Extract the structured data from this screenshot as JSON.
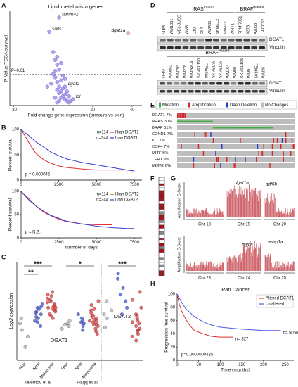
{
  "chart_data": [
    {
      "panel": "A",
      "type": "scatter",
      "title": "Lipid metabolism genes",
      "xlabel": "Fold change gene expression (tumours vs skin)",
      "ylabel": "P-Value TCGA survival",
      "xlim": [
        -22,
        45
      ],
      "xticks": [
        -20,
        0,
        20,
        40
      ],
      "ylim": [
        0,
        6
      ],
      "threshold": {
        "label": "P=0.01",
        "value": 2
      },
      "series": [
        {
          "color": "#a094ea",
          "x": [
            1,
            2,
            3,
            4,
            5,
            6,
            7,
            8,
            2,
            3,
            5,
            1,
            0,
            4,
            6,
            9,
            3,
            2,
            1,
            -1,
            0,
            5,
            7,
            4,
            3,
            8,
            6,
            2,
            1,
            -3,
            4,
            2
          ],
          "y": [
            1.8,
            1.5,
            1.2,
            0.9,
            0.6,
            0.4,
            0.3,
            0.2,
            2.6,
            2.3,
            1.9,
            2.9,
            3.4,
            0.5,
            0.7,
            0.3,
            0.8,
            1.0,
            0.5,
            1.4,
            2.0,
            1.1,
            0.9,
            1.6,
            0.3,
            0.6,
            1.7,
            0.2,
            2.2,
            1.2,
            2.7,
            3.1
          ]
        },
        {
          "color": "#a094ea",
          "x": [
            3,
            -2,
            6,
            10
          ],
          "y": [
            5.6,
            4.7,
            1.2,
            0.4
          ],
          "labels": [
            "tamm41",
            "sults1",
            "dgat2",
            "lpl"
          ]
        },
        {
          "color": "#f7a8a8",
          "x": [
            38
          ],
          "y": [
            4.6
          ],
          "labels": [
            "dgat1a"
          ]
        }
      ]
    },
    {
      "panel": "B",
      "type": "line",
      "ylabel": "Percent survival",
      "xlim": [
        0,
        8000
      ],
      "xticks": [
        0,
        2500,
        5000,
        7500
      ],
      "ylim": [
        0,
        100
      ],
      "yticks": [
        0,
        50,
        100
      ],
      "p_value": "p = 0.000046",
      "n_label_at": "legend",
      "series": [
        {
          "name": "High DGAT1",
          "n_label": "n=114",
          "color": "#e03030",
          "x": [
            0,
            300,
            700,
            1000,
            1500,
            2000,
            2500,
            3000,
            4000,
            5000,
            6000,
            7000
          ],
          "y": [
            100,
            85,
            65,
            52,
            40,
            33,
            28,
            25,
            22,
            20,
            20,
            20
          ]
        },
        {
          "name": "Low DGAT1",
          "n_label": "n=344",
          "color": "#3040d0",
          "x": [
            0,
            500,
            1000,
            1500,
            2000,
            2500,
            3000,
            4000,
            5000,
            6000,
            7000,
            7500
          ],
          "y": [
            100,
            88,
            75,
            65,
            55,
            48,
            42,
            35,
            30,
            25,
            20,
            18
          ]
        }
      ]
    },
    {
      "type": "line",
      "ylabel": "Percent survival",
      "xlabel": "Number of days",
      "xlim": [
        0,
        8000
      ],
      "xticks": [
        0,
        2500,
        5000,
        7500
      ],
      "ylim": [
        0,
        100
      ],
      "yticks": [
        0,
        50,
        100
      ],
      "p_value": "p = N.S.",
      "n_label_at": "legend",
      "series": [
        {
          "name": "High DGAT2",
          "n_label": "n=114",
          "color": "#e03030",
          "x": [
            0,
            500,
            1000,
            1500,
            2000,
            2500,
            3000,
            4000,
            5000,
            6000
          ],
          "y": [
            100,
            85,
            68,
            55,
            47,
            40,
            35,
            30,
            28,
            28
          ]
        },
        {
          "name": "Low DGAT2",
          "n_label": "n=344",
          "color": "#3040d0",
          "x": [
            0,
            500,
            1000,
            1500,
            2000,
            2500,
            3000,
            4000,
            5000,
            6000,
            7000,
            7500
          ],
          "y": [
            100,
            82,
            68,
            57,
            48,
            42,
            36,
            30,
            25,
            22,
            20,
            20
          ]
        }
      ]
    },
    {
      "panel": "C",
      "type": "dotplot",
      "ylabel": "Log2 expression",
      "ylim": [
        4,
        11.5
      ],
      "categories": [
        "Skin",
        "Nevi",
        "Melanoma",
        "Skin",
        "Nevi",
        "Melanoma",
        null,
        null,
        null
      ],
      "colors": [
        "#b0b0b0",
        "#3a50d8",
        "#e83a3a",
        "#b0b0b0",
        "#3a50d8",
        "#e83a3a",
        "#b0b0b0",
        "#3a50d8",
        "#e83a3a"
      ],
      "points": [
        [
          5.0,
          5.8,
          6.3,
          6.8,
          7.2
        ],
        [
          6.6,
          7.0,
          7.3,
          7.5,
          7.7,
          7.9,
          8.1,
          8.3,
          7.2,
          7.6,
          6.9,
          8.0
        ],
        [
          7.2,
          7.5,
          7.8,
          8.0,
          8.2,
          8.4,
          8.6,
          8.9,
          9.2,
          7.9,
          8.1,
          8.3,
          8.5,
          7.7,
          8.7,
          9.0,
          7.4,
          8.0
        ],
        [
          6.4,
          6.6,
          6.8,
          7.0,
          6.7
        ],
        [
          6.3,
          6.6,
          6.9,
          7.2,
          7.5,
          6.8,
          7.0
        ],
        [
          6.0,
          6.4,
          6.7,
          7.0,
          7.3,
          7.6,
          7.9,
          8.2,
          6.9,
          7.1,
          6.6,
          7.4,
          7.8,
          6.2,
          7.2,
          8.5,
          7.0,
          6.8
        ],
        [
          6.5,
          7.2,
          7.8,
          8.5,
          7.5
        ],
        [
          7.5,
          8.5,
          9.5,
          10.2,
          10.6,
          9.0,
          8.0
        ],
        [
          5.5,
          6.0,
          6.3,
          6.6,
          6.9,
          7.2,
          7.5,
          8.0,
          8.6,
          6.4,
          6.8,
          7.0,
          5.8,
          9.2,
          6.2,
          7.4
        ]
      ],
      "significance": [
        "***",
        "**",
        "*",
        "***"
      ],
      "genes": [
        "DGAT1",
        "DGAT2"
      ],
      "studies": [
        "Talentov et al",
        "Haqq et al"
      ]
    },
    {
      "panel": "H",
      "type": "line",
      "title": "Pan Cancer",
      "xlabel": "Time (months)",
      "ylabel": "Progression free survival",
      "xlim": [
        0,
        270
      ],
      "xticks": [
        0,
        50,
        100,
        150,
        200,
        250
      ],
      "ylim": [
        0,
        100
      ],
      "yticks": [
        0,
        20,
        40,
        60,
        80,
        100
      ],
      "p_value": "p=0.0000000425",
      "n_label_at": "line end",
      "legend": "top-right",
      "series": [
        {
          "name": "Altered DGAT1",
          "n_label": "n= 327",
          "color": "#e03030",
          "x": [
            0,
            5,
            10,
            20,
            30,
            40,
            60,
            80,
            100,
            130
          ],
          "y": [
            100,
            85,
            75,
            62,
            52,
            45,
            40,
            36,
            35,
            35
          ]
        },
        {
          "name": "Unaltered",
          "n_label": "n= 5056",
          "color": "#4a5ae0",
          "x": [
            0,
            5,
            10,
            20,
            40,
            60,
            80,
            100,
            150,
            200,
            240
          ],
          "y": [
            100,
            94,
            88,
            78,
            66,
            58,
            53,
            50,
            47,
            45,
            45
          ]
        }
      ]
    }
  ],
  "blots": {
    "panel": "D",
    "sections": [
      {
        "groups": [
          {
            "name": "RAS",
            "sup": "mutant"
          },
          {
            "name": "BRAF",
            "sup": "mutant"
          }
        ],
        "lanes": [
          "NHM",
          "WM1361",
          "MEL-JUSO",
          "WM3",
          "D10",
          "D04",
          "WM485",
          "SKMEL2",
          "MM415",
          "WNT1",
          "RPMI7951",
          "A375",
          "A2058",
          "UACC62"
        ],
        "rows": [
          "DGAT1",
          "Vinculin"
        ]
      },
      {
        "groups": [
          {
            "name": "BRAF",
            "sup": "mutant"
          }
        ],
        "lanes": [
          "NHM",
          "WM852",
          "WM793",
          "WM278",
          "WM266-4",
          "SKMEL190",
          "888MEL",
          "SKMEL39",
          "SKMEL28",
          "WM164",
          "WM98",
          "SKMEL105",
          "WM9",
          "501MEL",
          "WM35"
        ],
        "rows": [
          "DGAT1",
          "Vinculin"
        ]
      }
    ]
  },
  "oncoprint": {
    "panel": "E",
    "legend": [
      "Mutation",
      "Amplification",
      "Deep Deletion",
      "No Changes"
    ],
    "rows": [
      "DGAT1 7%",
      "NRAS 30%",
      "BRAF 51%",
      "CCND1 7%",
      "KIT 7%",
      "CDK4 7%",
      "MITF 8%",
      "TERT 9%",
      "MDM2 6%"
    ]
  },
  "ideogram": {
    "panel": "F"
  },
  "amplification": {
    "panel": "G",
    "plots": [
      {
        "ylabel": "Amplification G-Score",
        "chromosomes": [
          "Chr 18",
          "Chr 19",
          "Chr 20"
        ],
        "genes": [
          "dgat1a",
          "gdf6b"
        ]
      },
      {
        "ylabel": "Amplification G-Score",
        "chromosomes": [
          "Chr 23",
          "Chr 24",
          "Chr 25"
        ],
        "genes": [
          "myca",
          "asap1a"
        ]
      }
    ]
  }
}
